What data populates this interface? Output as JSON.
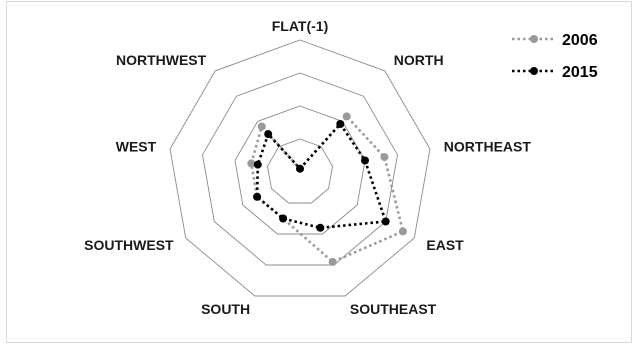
{
  "chart_data": {
    "type": "radar",
    "categories": [
      "FLAT(-1)",
      "NORTH",
      "NORTHEAST",
      "EAST",
      "SOUTHEAST",
      "SOUTH",
      "SOUTHWEST",
      "WEST",
      "NORTHWEST"
    ],
    "rmax": 4,
    "grid_levels": 4,
    "legend_position": "top-right",
    "series": [
      {
        "name": "2006",
        "color": "#9a9a9a",
        "values": [
          0.1,
          2.2,
          2.6,
          3.6,
          2.9,
          1.5,
          1.5,
          1.5,
          1.8
        ]
      },
      {
        "name": "2015",
        "color": "#000000",
        "values": [
          0.1,
          1.9,
          2.0,
          3.0,
          1.8,
          1.5,
          1.5,
          1.3,
          1.5
        ]
      }
    ]
  }
}
